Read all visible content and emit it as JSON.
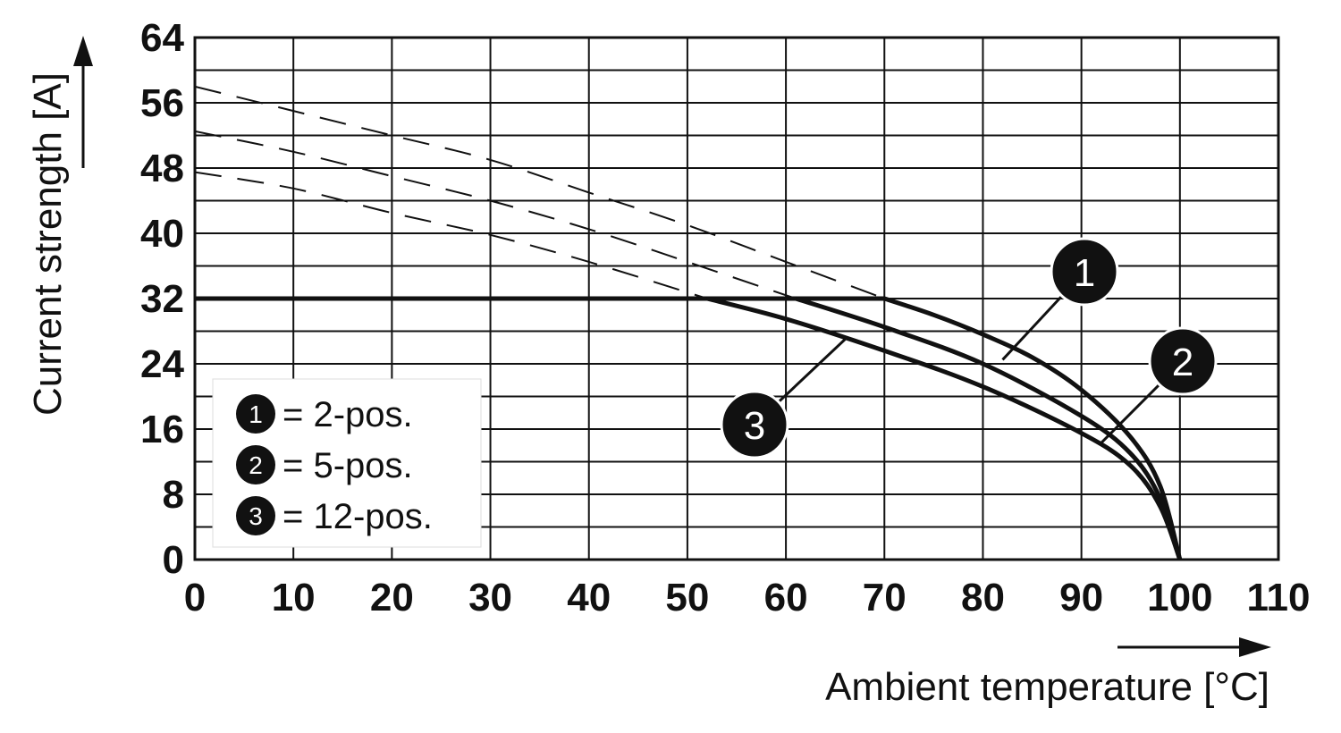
{
  "chart_data": {
    "type": "line",
    "xlabel": "Ambient temperature [°C]",
    "ylabel": "Current strength [A]",
    "xlim": [
      0,
      110
    ],
    "ylim": [
      0,
      64
    ],
    "x_ticks": [
      0,
      10,
      20,
      30,
      40,
      50,
      60,
      70,
      80,
      90,
      100,
      110
    ],
    "y_ticks": [
      0,
      8,
      16,
      24,
      32,
      40,
      48,
      56,
      64
    ],
    "grid": true,
    "legend_position": "bottom-left",
    "series": [
      {
        "name": "2-pos.",
        "marker": "1",
        "legend_label": "= 2-pos.",
        "solid": [
          [
            0,
            32
          ],
          [
            70,
            32
          ],
          [
            75,
            30
          ],
          [
            80,
            27.6
          ],
          [
            85,
            24.8
          ],
          [
            90,
            20.8
          ],
          [
            95,
            15
          ],
          [
            98,
            9
          ],
          [
            100,
            0
          ]
        ],
        "dashed": [
          [
            0,
            58
          ],
          [
            10,
            55
          ],
          [
            20,
            52
          ],
          [
            30,
            49
          ],
          [
            40,
            45
          ],
          [
            50,
            41
          ],
          [
            60,
            36.5
          ],
          [
            70,
            32
          ]
        ]
      },
      {
        "name": "5-pos.",
        "marker": "2",
        "legend_label": "= 5-pos.",
        "solid": [
          [
            0,
            32
          ],
          [
            61,
            32
          ],
          [
            70,
            28.5
          ],
          [
            80,
            24
          ],
          [
            90,
            17.6
          ],
          [
            95,
            13
          ],
          [
            98,
            7.5
          ],
          [
            100,
            0
          ]
        ],
        "dashed": [
          [
            0,
            52.5
          ],
          [
            10,
            50
          ],
          [
            20,
            47
          ],
          [
            30,
            44
          ],
          [
            40,
            40.5
          ],
          [
            50,
            36.5
          ],
          [
            61,
            32
          ]
        ]
      },
      {
        "name": "12-pos.",
        "marker": "3",
        "legend_label": "= 12-pos.",
        "solid": [
          [
            0,
            32
          ],
          [
            52,
            32
          ],
          [
            60,
            29.5
          ],
          [
            70,
            25.6
          ],
          [
            80,
            21.2
          ],
          [
            90,
            15.5
          ],
          [
            95,
            11.5
          ],
          [
            98,
            6.5
          ],
          [
            100,
            0
          ]
        ],
        "dashed": [
          [
            0,
            47.5
          ],
          [
            10,
            45.5
          ],
          [
            20,
            42.5
          ],
          [
            30,
            39.8
          ],
          [
            40,
            36.5
          ],
          [
            52,
            32
          ]
        ]
      }
    ],
    "callouts": [
      {
        "label": "1",
        "anchor": [
          82,
          24.5
        ]
      },
      {
        "label": "2",
        "anchor": [
          92,
          14.3
        ]
      },
      {
        "label": "3",
        "anchor": [
          66,
          27
        ]
      }
    ]
  }
}
